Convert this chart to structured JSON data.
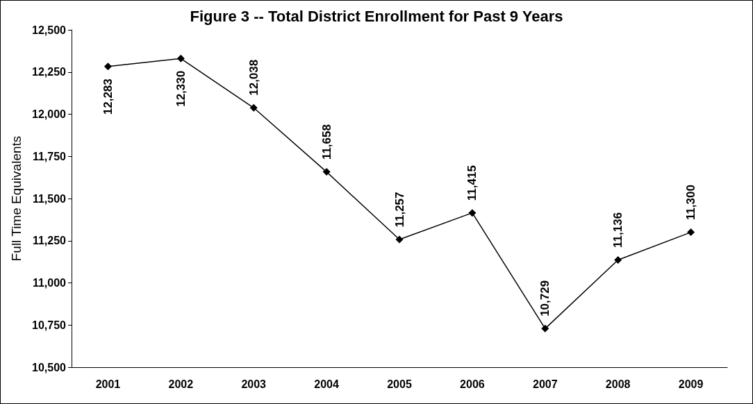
{
  "chart_data": {
    "type": "line",
    "title": "Figure 3 -- Total District Enrollment for Past 9 Years",
    "ylabel": "Full Time Equivalents",
    "categories": [
      "2001",
      "2002",
      "2003",
      "2004",
      "2005",
      "2006",
      "2007",
      "2008",
      "2009"
    ],
    "series": [
      {
        "color": "#000000",
        "values": [
          12283,
          12330,
          12038,
          11658,
          11257,
          11415,
          10729,
          11136,
          11300
        ],
        "value_labels": [
          "12,283",
          "12,330",
          "12,038",
          "11,658",
          "11,257",
          "11,415",
          "10,729",
          "11,136",
          "11,300"
        ]
      }
    ],
    "ylim": [
      10500,
      12500
    ],
    "yticks": [
      {
        "value": 10500,
        "label": "10,500"
      },
      {
        "value": 10750,
        "label": "10,750"
      },
      {
        "value": 11000,
        "label": "11,000"
      },
      {
        "value": 11250,
        "label": "11,250"
      },
      {
        "value": 11500,
        "label": "11,500"
      },
      {
        "value": 11750,
        "label": "11,750"
      },
      {
        "value": 12000,
        "label": "12,000"
      },
      {
        "value": 12250,
        "label": "12,250"
      },
      {
        "value": 12500,
        "label": "12,500"
      }
    ],
    "marker": "diamond",
    "line_style": "solid"
  }
}
